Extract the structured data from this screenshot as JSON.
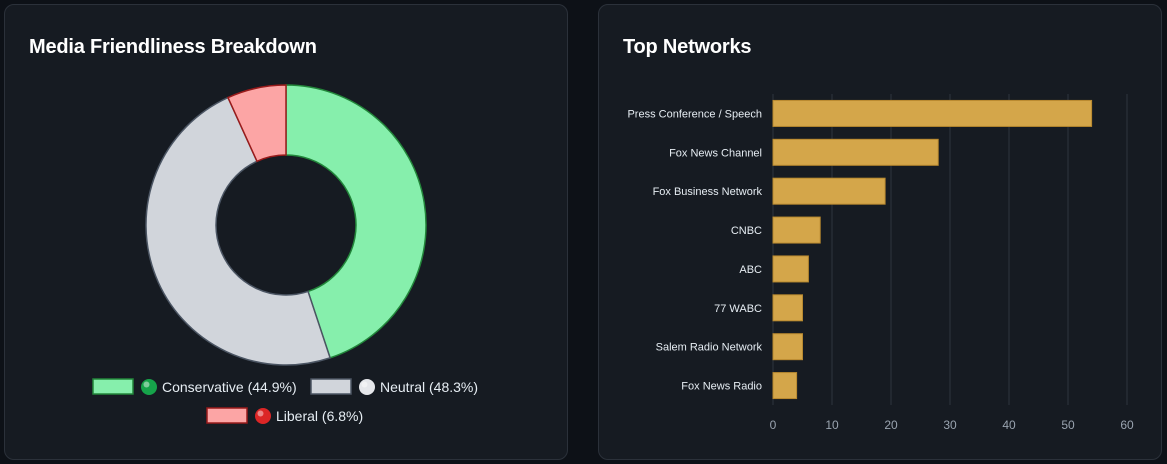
{
  "left_card": {
    "title": "Media Friendliness Breakdown"
  },
  "right_card": {
    "title": "Top Networks"
  },
  "colors": {
    "conservative_fill": "#86efac",
    "conservative_stroke": "#22863a",
    "neutral_fill": "#d1d5db",
    "neutral_stroke": "#4b5563",
    "liberal_fill": "#fca5a5",
    "liberal_stroke": "#991b1b",
    "bar_fill": "#d4a64a",
    "bar_stroke": "#b8892f",
    "grid": "#2f353e",
    "green_dot": "#16a34a",
    "white_dot": "#e5e7eb",
    "red_dot": "#dc2626"
  },
  "chart_data": [
    {
      "type": "pie",
      "title": "Media Friendliness Breakdown",
      "donut": true,
      "slices": [
        {
          "name": "Conservative",
          "value": 44.9,
          "legend_label": "Conservative (44.9%)",
          "icon": "green-circle-icon"
        },
        {
          "name": "Neutral",
          "value": 48.3,
          "legend_label": "Neutral (48.3%)",
          "icon": "white-circle-icon"
        },
        {
          "name": "Liberal",
          "value": 6.8,
          "legend_label": "Liberal (6.8%)",
          "icon": "red-circle-icon"
        }
      ],
      "legend_position": "bottom"
    },
    {
      "type": "bar",
      "orientation": "horizontal",
      "title": "Top Networks",
      "categories": [
        "Press Conference / Speech",
        "Fox News Channel",
        "Fox Business Network",
        "CNBC",
        "ABC",
        "77 WABC",
        "Salem Radio Network",
        "Fox News Radio"
      ],
      "values": [
        54,
        28,
        19,
        8,
        6,
        5,
        5,
        4
      ],
      "xlim": [
        0,
        60
      ],
      "xticks": [
        0,
        10,
        20,
        30,
        40,
        50,
        60
      ],
      "grid": true
    }
  ]
}
